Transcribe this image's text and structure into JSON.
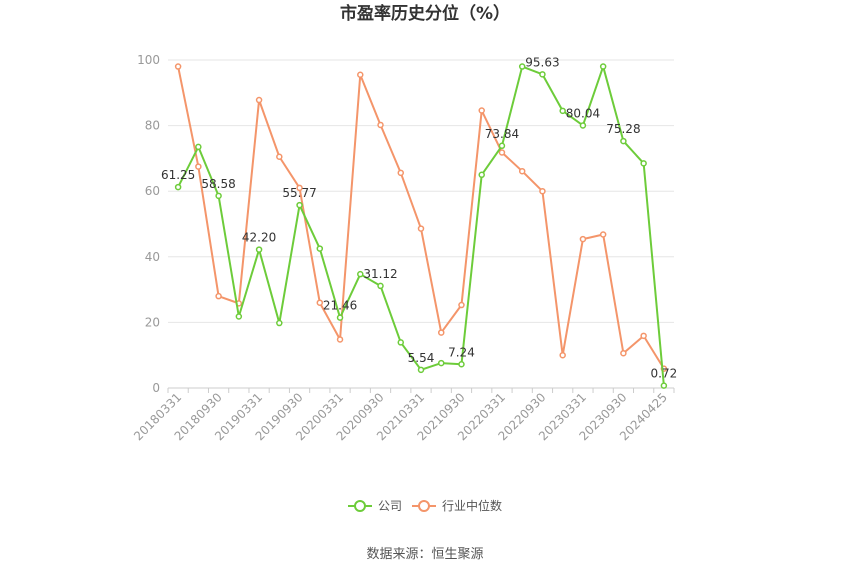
{
  "chart_data": {
    "type": "line",
    "title": "市盈率历史分位（%）",
    "ylim": [
      0,
      100
    ],
    "yticks": [
      0,
      20,
      40,
      60,
      80,
      100
    ],
    "grid": true,
    "legend_position": "bottom-center",
    "x": [
      "20180331",
      "20180630",
      "20180930",
      "20181231",
      "20190331",
      "20190630",
      "20190930",
      "20191231",
      "20200331",
      "20200630",
      "20200930",
      "20201231",
      "20210331",
      "20210630",
      "20210930",
      "20211231",
      "20220331",
      "20220630",
      "20220930",
      "20221231",
      "20230331",
      "20230630",
      "20230930",
      "20231231",
      "20240425"
    ],
    "xtick_labels": [
      "20180331",
      "20180930",
      "20190331",
      "20190930",
      "20200331",
      "20200930",
      "20210331",
      "20210930",
      "20220331",
      "20220930",
      "20230331",
      "20230930",
      "20240425"
    ],
    "series": [
      {
        "name": "公司",
        "color": "#6dcc3a",
        "values": [
          61.25,
          73.5,
          58.58,
          21.8,
          42.2,
          19.8,
          55.77,
          42.5,
          21.46,
          34.7,
          31.12,
          13.9,
          5.54,
          7.6,
          7.24,
          65.0,
          73.84,
          98.0,
          95.63,
          84.5,
          80.04,
          98.0,
          75.28,
          68.5,
          0.72
        ],
        "labels": {
          "0": "61.25",
          "2": "58.58",
          "4": "42.20",
          "6": "55.77",
          "8": "21.46",
          "10": "31.12",
          "12": "5.54",
          "14": "7.24",
          "16": "73.84",
          "18": "95.63",
          "20": "80.04",
          "22": "75.28",
          "24": "0.72"
        }
      },
      {
        "name": "行业中位数",
        "color": "#f4956a",
        "values": [
          98.0,
          67.5,
          28.0,
          25.8,
          87.8,
          70.5,
          61.0,
          26.0,
          14.8,
          95.5,
          80.2,
          65.6,
          48.6,
          16.9,
          25.3,
          84.6,
          71.8,
          66.1,
          60.0,
          10.0,
          45.4,
          46.8,
          10.6,
          15.9,
          5.9
        ]
      }
    ],
    "source_note": "数据来源：恒生聚源"
  }
}
